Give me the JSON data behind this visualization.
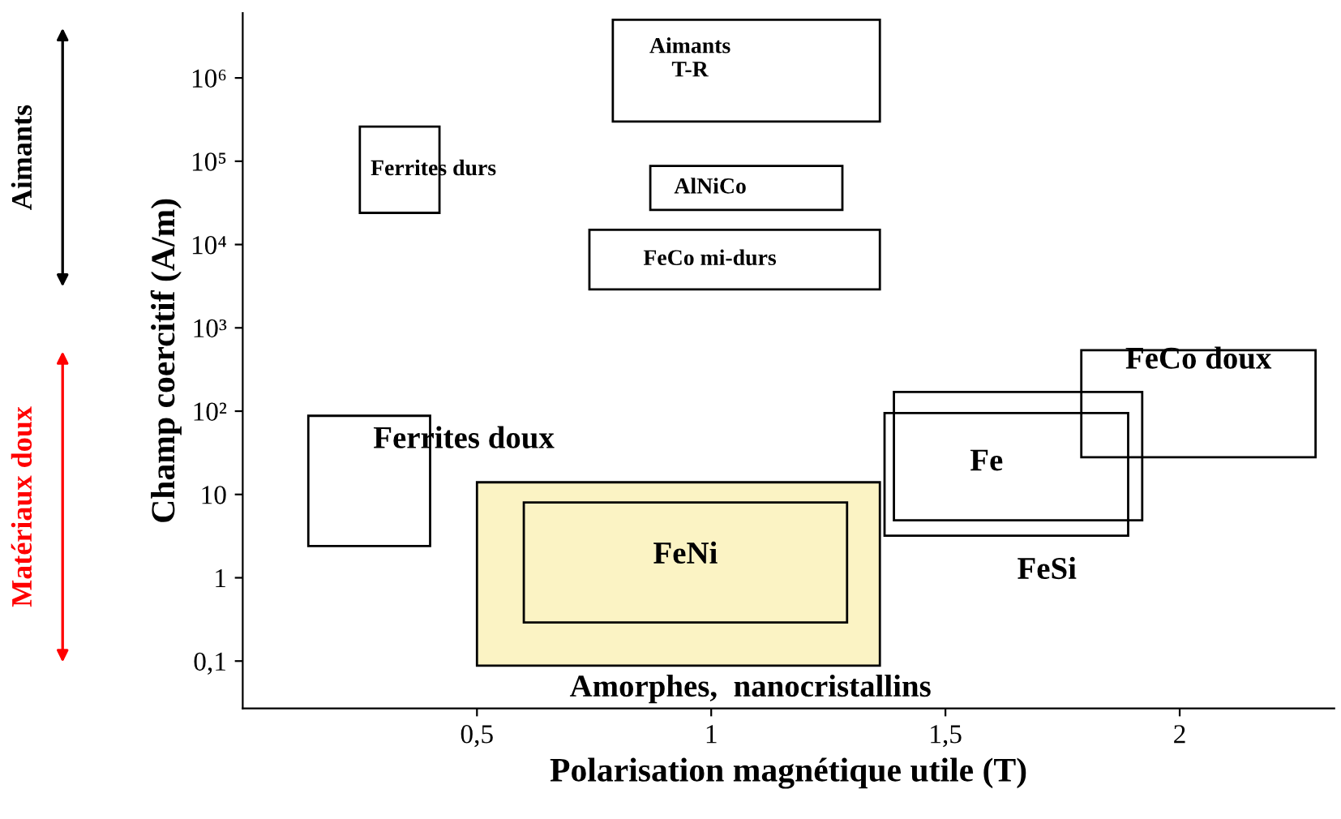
{
  "chart_data": {
    "type": "area",
    "xlabel": "Polarisation magnétique utile (T)",
    "ylabel": "Champ coercitif (A/m)",
    "log": "y",
    "xlim": [
      0,
      2.33
    ],
    "ylim": [
      0.027,
      6000000
    ],
    "xticks": [
      {
        "value": 0.5,
        "label": "0,5"
      },
      1,
      {
        "value": 1.5,
        "label": "1,5"
      },
      2
    ],
    "yticks": [
      {
        "value": 0.1,
        "label": "0,1"
      },
      1,
      10,
      {
        "value": 100,
        "label": "10²"
      },
      {
        "value": 1000,
        "label": "10³"
      },
      {
        "value": 10000,
        "label": "10⁴"
      },
      {
        "value": 100000,
        "label": "10⁵"
      },
      {
        "value": 1000000,
        "label": "10⁶"
      }
    ],
    "series": [
      {
        "name": "Amorphes,  nanocristallins",
        "color": "#fbf3c4",
        "x": [
          0.5,
          1.36,
          1.36,
          0.5,
          0.5
        ],
        "values": [
          0.088,
          0.088,
          14,
          14,
          0.088
        ]
      },
      {
        "name": "FeNi",
        "color": "#fbf3c4",
        "x": [
          0.6,
          1.29,
          1.29,
          0.6,
          0.6
        ],
        "values": [
          0.29,
          0.29,
          8,
          8,
          0.29
        ]
      },
      {
        "name": "Aimants\nT-R",
        "color": "#ffffff",
        "x": [
          0.79,
          1.36,
          1.36,
          0.79,
          0.79
        ],
        "values": [
          300000,
          300000,
          5000000,
          5000000,
          300000
        ]
      },
      {
        "name": "Ferrites durs",
        "color": "#ffffff",
        "x": [
          0.25,
          0.42,
          0.42,
          0.25,
          0.25
        ],
        "values": [
          24000,
          24000,
          260000,
          260000,
          24000
        ]
      },
      {
        "name": "AlNiCo",
        "color": "#ffffff",
        "x": [
          0.87,
          1.28,
          1.28,
          0.87,
          0.87
        ],
        "values": [
          26000,
          26000,
          88000,
          88000,
          26000
        ]
      },
      {
        "name": "FeCo mi-durs",
        "color": "#ffffff",
        "x": [
          0.74,
          1.36,
          1.36,
          0.74,
          0.74
        ],
        "values": [
          2900,
          2900,
          15000,
          15000,
          2900
        ]
      },
      {
        "name": "FeCo doux",
        "color": "#ffffff",
        "x": [
          1.79,
          2.29,
          2.29,
          1.79,
          1.79
        ],
        "values": [
          28,
          28,
          540,
          540,
          28
        ]
      },
      {
        "name": "Fe",
        "color": "#ffffff",
        "x": [
          1.39,
          1.92,
          1.92,
          1.39,
          1.39
        ],
        "values": [
          4.9,
          4.9,
          170,
          170,
          4.9
        ]
      },
      {
        "name": "FeSi",
        "color": "#ffffff",
        "x": [
          1.37,
          1.89,
          1.89,
          1.37,
          1.37
        ],
        "values": [
          3.2,
          3.2,
          95,
          95,
          3.2
        ]
      },
      {
        "name": "Ferrites doux",
        "color": "#ffffff",
        "x": [
          0.14,
          0.4,
          0.4,
          0.14,
          0.14
        ],
        "values": [
          2.4,
          2.4,
          88,
          88,
          2.4
        ]
      }
    ],
    "annotations": [
      "Aimants",
      "Matériaux doux"
    ]
  }
}
